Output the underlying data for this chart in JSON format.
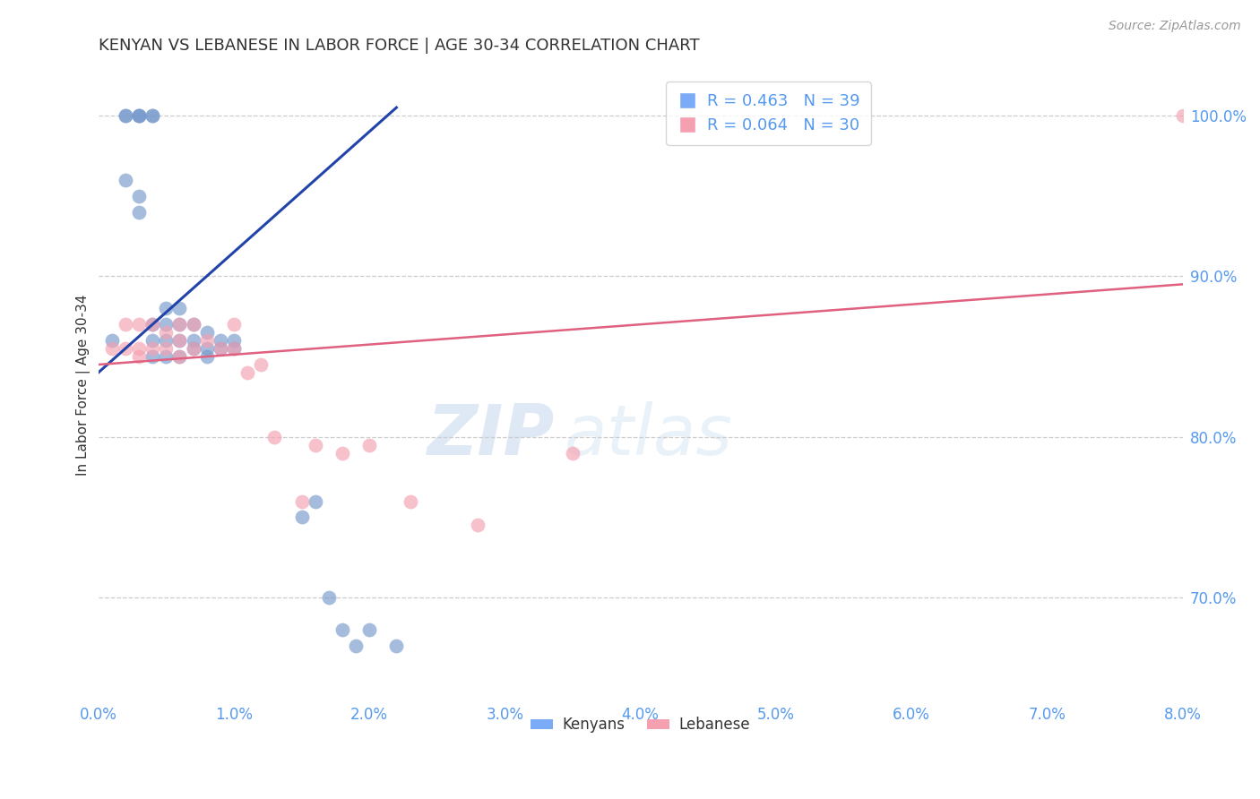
{
  "title": "KENYAN VS LEBANESE IN LABOR FORCE | AGE 30-34 CORRELATION CHART",
  "source": "Source: ZipAtlas.com",
  "ylabel": "In Labor Force | Age 30-34",
  "xlim": [
    0.0,
    0.08
  ],
  "ylim": [
    0.635,
    1.03
  ],
  "yticks": [
    0.7,
    0.8,
    0.9,
    1.0
  ],
  "xticks": [
    0.0,
    0.01,
    0.02,
    0.03,
    0.04,
    0.05,
    0.06,
    0.07,
    0.08
  ],
  "kenyan_color": "#7799cc",
  "lebanese_color": "#f4a0b0",
  "kenyan_line_color": "#2244aa",
  "lebanese_line_color": "#e06080",
  "legend_kenyan_R": "0.463",
  "legend_kenyan_N": "39",
  "legend_lebanese_R": "0.064",
  "legend_lebanese_N": "30",
  "legend_color_kenyan": "#7baaf7",
  "legend_color_lebanese": "#f4a0b0",
  "title_color": "#333333",
  "axis_label_color": "#333333",
  "tick_label_color": "#5599ee",
  "source_color": "#999999",
  "watermark_zip": "ZIP",
  "watermark_atlas": "atlas",
  "kenyan_x": [
    0.001,
    0.002,
    0.002,
    0.002,
    0.003,
    0.003,
    0.003,
    0.003,
    0.003,
    0.004,
    0.004,
    0.004,
    0.004,
    0.004,
    0.005,
    0.005,
    0.005,
    0.005,
    0.006,
    0.006,
    0.006,
    0.006,
    0.007,
    0.007,
    0.007,
    0.008,
    0.008,
    0.008,
    0.009,
    0.009,
    0.01,
    0.01,
    0.015,
    0.016,
    0.017,
    0.018,
    0.019,
    0.02,
    0.022
  ],
  "kenyan_y": [
    0.86,
    1.0,
    1.0,
    0.96,
    1.0,
    1.0,
    1.0,
    0.95,
    0.94,
    1.0,
    1.0,
    0.87,
    0.86,
    0.85,
    0.88,
    0.87,
    0.86,
    0.85,
    0.88,
    0.87,
    0.86,
    0.85,
    0.87,
    0.86,
    0.855,
    0.865,
    0.855,
    0.85,
    0.86,
    0.855,
    0.86,
    0.855,
    0.75,
    0.76,
    0.7,
    0.68,
    0.67,
    0.68,
    0.67
  ],
  "lebanese_x": [
    0.001,
    0.002,
    0.002,
    0.003,
    0.003,
    0.003,
    0.004,
    0.004,
    0.005,
    0.005,
    0.006,
    0.006,
    0.006,
    0.007,
    0.007,
    0.008,
    0.009,
    0.01,
    0.01,
    0.011,
    0.012,
    0.013,
    0.015,
    0.016,
    0.018,
    0.02,
    0.023,
    0.028,
    0.035,
    0.08
  ],
  "lebanese_y": [
    0.855,
    0.87,
    0.855,
    0.87,
    0.855,
    0.85,
    0.87,
    0.855,
    0.865,
    0.855,
    0.87,
    0.86,
    0.85,
    0.87,
    0.855,
    0.86,
    0.855,
    0.87,
    0.855,
    0.84,
    0.845,
    0.8,
    0.76,
    0.795,
    0.79,
    0.795,
    0.76,
    0.745,
    0.79,
    1.0
  ],
  "lebanese_line_x0": 0.0,
  "lebanese_line_y0": 0.845,
  "lebanese_line_x1": 0.08,
  "lebanese_line_y1": 0.895,
  "kenyan_line_x0": 0.0,
  "kenyan_line_y0": 0.84,
  "kenyan_line_x1": 0.022,
  "kenyan_line_y1": 1.005
}
